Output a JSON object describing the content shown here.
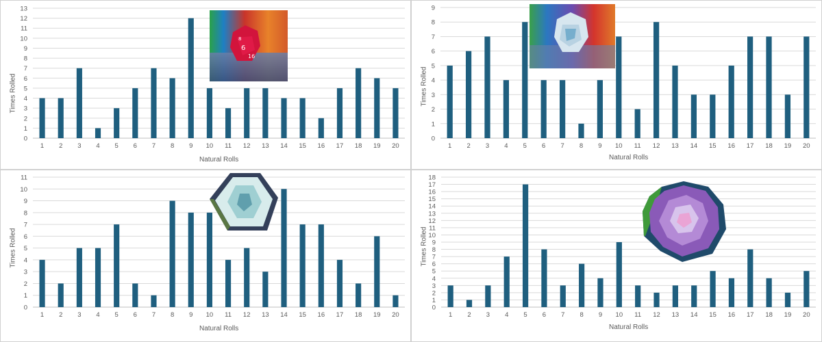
{
  "chart_data": [
    {
      "type": "bar",
      "categories": [
        "1",
        "2",
        "3",
        "4",
        "5",
        "6",
        "7",
        "8",
        "9",
        "10",
        "11",
        "12",
        "13",
        "14",
        "15",
        "16",
        "17",
        "18",
        "19",
        "20"
      ],
      "values": [
        4,
        4,
        7,
        1,
        3,
        5,
        7,
        6,
        12,
        5,
        3,
        5,
        5,
        4,
        4,
        2,
        5,
        7,
        6,
        5
      ],
      "xlabel": "Natural Rolls",
      "ylabel": "Times Rolled",
      "ylim": [
        0,
        13
      ],
      "grid": true,
      "bar_color": "#1f5f7f",
      "image": "red-d20-photo"
    },
    {
      "type": "bar",
      "categories": [
        "1",
        "2",
        "3",
        "4",
        "5",
        "6",
        "7",
        "8",
        "9",
        "10",
        "11",
        "12",
        "13",
        "14",
        "15",
        "16",
        "17",
        "18",
        "19",
        "20"
      ],
      "values": [
        5,
        6,
        7,
        4,
        8,
        4,
        4,
        1,
        4,
        7,
        2,
        8,
        5,
        3,
        3,
        5,
        7,
        7,
        3,
        7
      ],
      "xlabel": "Natural Rolls",
      "ylabel": "Times Rolled",
      "ylim": [
        0,
        9
      ],
      "grid": true,
      "bar_color": "#1f5f7f",
      "image": "clear-blue-d20-photo"
    },
    {
      "type": "bar",
      "categories": [
        "1",
        "2",
        "3",
        "4",
        "5",
        "6",
        "7",
        "8",
        "9",
        "10",
        "11",
        "12",
        "13",
        "14",
        "15",
        "16",
        "17",
        "18",
        "19",
        "20"
      ],
      "values": [
        4,
        2,
        5,
        5,
        7,
        2,
        1,
        9,
        8,
        8,
        4,
        5,
        3,
        10,
        7,
        7,
        4,
        2,
        6,
        1
      ],
      "xlabel": "Natural Rolls",
      "ylabel": "Times Rolled",
      "ylim": [
        0,
        11
      ],
      "grid": true,
      "bar_color": "#1f5f7f",
      "image": "clear-teal-d20-photo"
    },
    {
      "type": "bar",
      "categories": [
        "1",
        "2",
        "3",
        "4",
        "5",
        "6",
        "7",
        "8",
        "9",
        "10",
        "11",
        "12",
        "13",
        "14",
        "15",
        "16",
        "17",
        "18",
        "19",
        "20"
      ],
      "values": [
        3,
        1,
        3,
        7,
        17,
        8,
        3,
        6,
        4,
        9,
        3,
        2,
        3,
        3,
        5,
        4,
        8,
        4,
        2,
        5
      ],
      "xlabel": "Natural Rolls",
      "ylabel": "Times Rolled",
      "ylim": [
        0,
        18
      ],
      "grid": true,
      "bar_color": "#1f5f7f",
      "image": "purple-d20-photo"
    }
  ]
}
